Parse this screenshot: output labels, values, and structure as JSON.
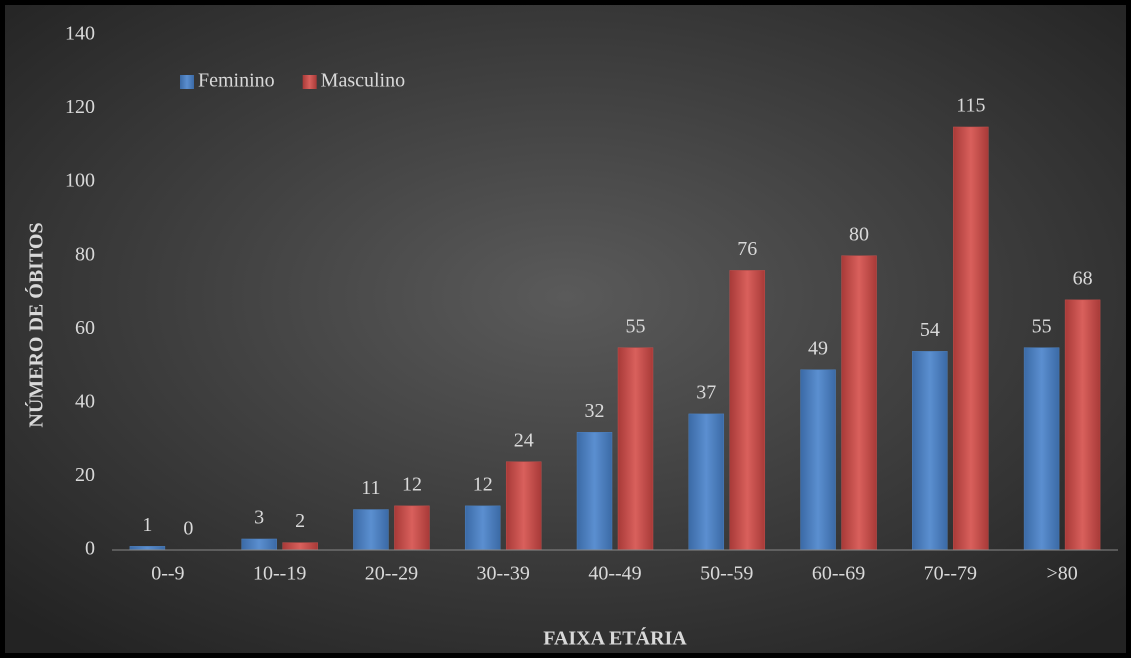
{
  "chart_data": {
    "type": "bar",
    "categories": [
      "0--9",
      "10--19",
      "20--29",
      "30--39",
      "40--49",
      "50--59",
      "60--69",
      "70--79",
      ">80"
    ],
    "series": [
      {
        "name": "Feminino",
        "color": "#4f81bd",
        "values": [
          1,
          3,
          11,
          12,
          32,
          37,
          49,
          54,
          55
        ]
      },
      {
        "name": "Masculino",
        "color": "#c0504d",
        "values": [
          0,
          2,
          12,
          24,
          55,
          76,
          80,
          115,
          68
        ]
      }
    ],
    "ylim": [
      0,
      140
    ],
    "yticks": [
      0,
      20,
      40,
      60,
      80,
      100,
      120,
      140
    ],
    "xlabel": "FAIXA ETÁRIA",
    "ylabel": "NÚMERO DE ÓBITOS",
    "legend": "top-left"
  }
}
